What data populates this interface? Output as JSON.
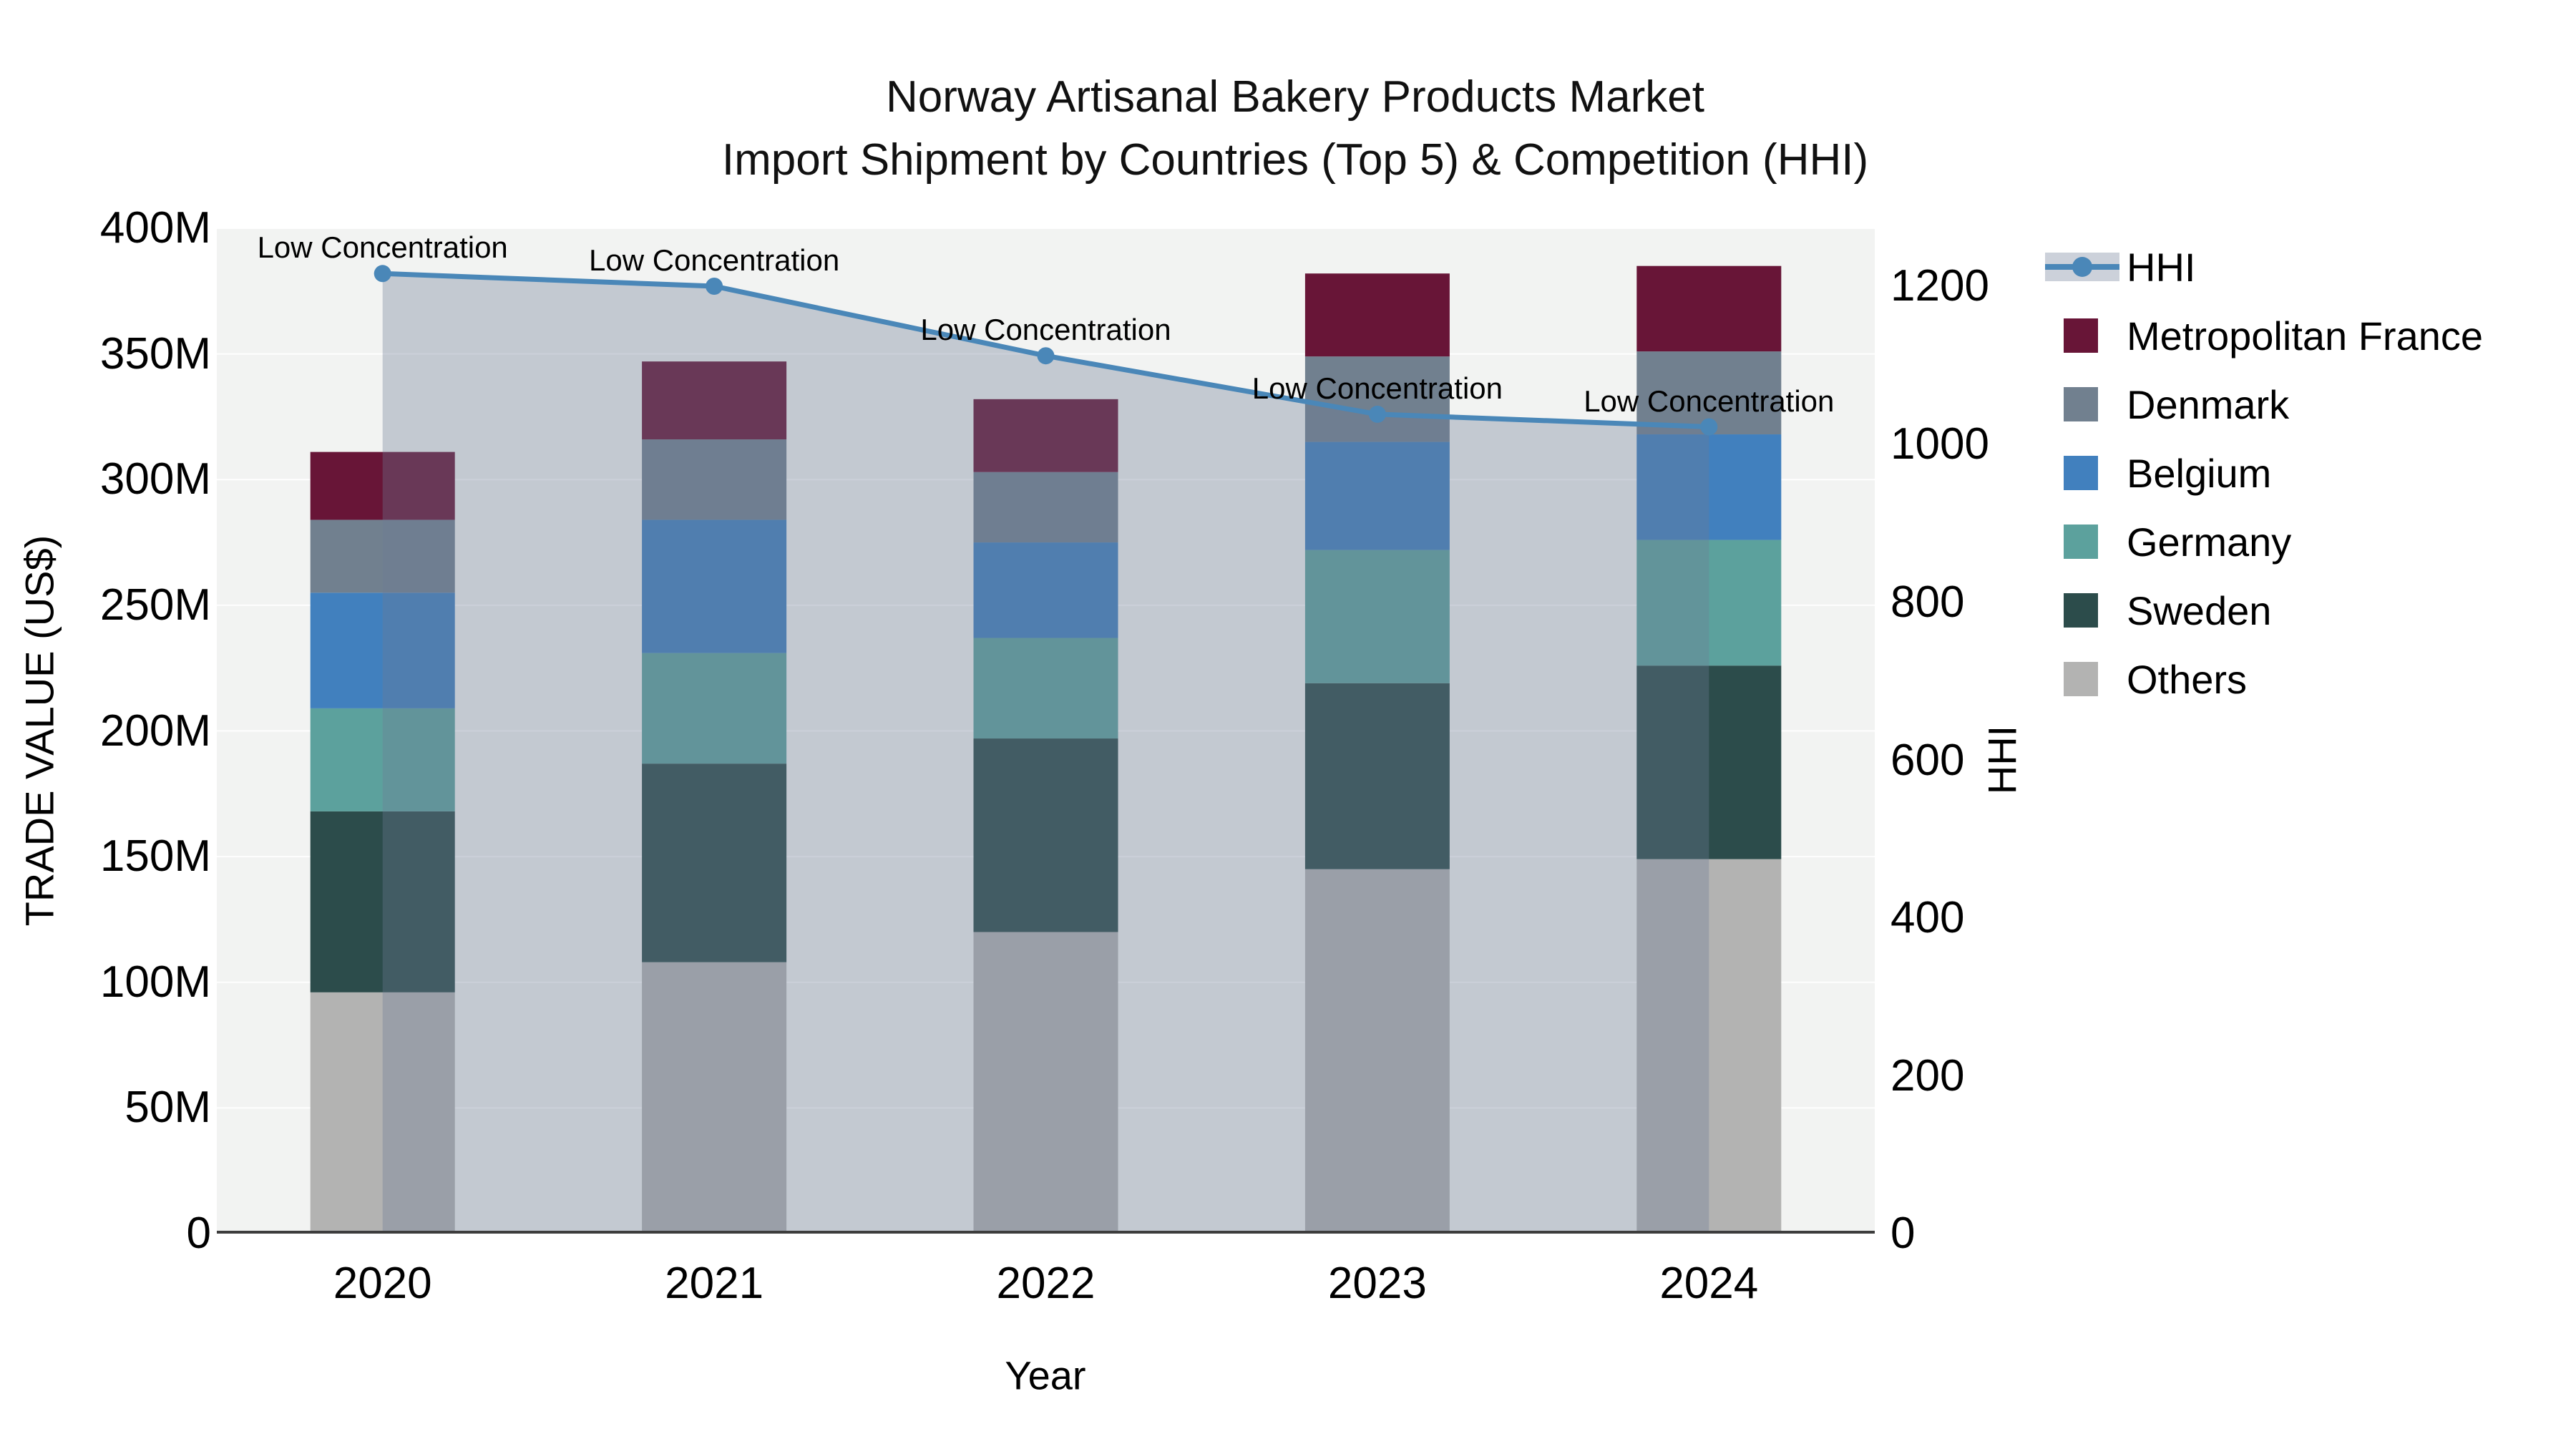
{
  "title": {
    "line1": "Norway Artisanal Bakery Products Market",
    "line2": "Import Shipment by Countries (Top 5) & Competition (HHI)"
  },
  "axes": {
    "x": {
      "title": "Year",
      "categories": [
        "2020",
        "2021",
        "2022",
        "2023",
        "2024"
      ]
    },
    "y_left": {
      "title": "TRADE VALUE (US$)",
      "ticks": [
        "0",
        "50M",
        "100M",
        "150M",
        "200M",
        "250M",
        "300M",
        "350M",
        "400M"
      ],
      "max": 400
    },
    "y_right": {
      "title": "HHI",
      "ticks": [
        "0",
        "200",
        "400",
        "600",
        "800",
        "1000",
        "1200"
      ],
      "max_label": 1200
    }
  },
  "legend": [
    {
      "label": "HHI",
      "type": "line"
    },
    {
      "label": "Metropolitan France",
      "type": "swatch",
      "color": "#681537"
    },
    {
      "label": "Denmark",
      "type": "swatch",
      "color": "#71808f"
    },
    {
      "label": "Belgium",
      "type": "swatch",
      "color": "#4180be"
    },
    {
      "label": "Germany",
      "type": "swatch",
      "color": "#5ca19d"
    },
    {
      "label": "Sweden",
      "type": "swatch",
      "color": "#2c4c4b"
    },
    {
      "label": "Others",
      "type": "swatch",
      "color": "#b3b3b2"
    }
  ],
  "chart_data": {
    "type": "bar+line",
    "subtype": "stacked bars (trade value, millions US$) with HHI line and shaded area under line",
    "categories": [
      "2020",
      "2021",
      "2022",
      "2023",
      "2024"
    ],
    "series": [
      {
        "name": "Metropolitan France",
        "color": "#681537",
        "values": [
          27,
          31,
          29,
          33,
          34
        ]
      },
      {
        "name": "Denmark",
        "color": "#71808f",
        "values": [
          29,
          32,
          28,
          34,
          33
        ]
      },
      {
        "name": "Belgium",
        "color": "#4180be",
        "values": [
          46,
          53,
          38,
          43,
          42
        ]
      },
      {
        "name": "Germany",
        "color": "#5ca19d",
        "values": [
          41,
          44,
          40,
          53,
          50
        ]
      },
      {
        "name": "Sweden",
        "color": "#2c4c4b",
        "values": [
          72,
          79,
          77,
          74,
          77
        ]
      },
      {
        "name": "Others",
        "color": "#b3b3b2",
        "values": [
          96,
          108,
          120,
          145,
          149
        ]
      }
    ],
    "stack_order_bottom_to_top": [
      "Others",
      "Sweden",
      "Germany",
      "Belgium",
      "Denmark",
      "Metropolitan France"
    ],
    "bar_totals": [
      311,
      347,
      332,
      382,
      385
    ],
    "hhi_line": {
      "name": "HHI",
      "color": "#4a87b8",
      "area_color": "rgba(108,124,150,0.35)",
      "values": [
        1216,
        1200,
        1112,
        1038,
        1022
      ]
    },
    "annotations": [
      "Low Concentration",
      "Low Concentration",
      "Low Concentration",
      "Low Concentration",
      "Low Concentration"
    ],
    "xlabel": "Year",
    "ylabel_left": "TRADE VALUE (US$)",
    "ylabel_right": "HHI",
    "ylim_left": [
      0,
      400
    ],
    "ylim_right_gridline_top": 1200,
    "grid": "horizontal, 50M intervals",
    "legend_position": "right",
    "plot_bg": "#f2f3f2",
    "grid_color": "rgba(255,255,255,0.9)",
    "axis_line_color": "#3d3d3d"
  }
}
